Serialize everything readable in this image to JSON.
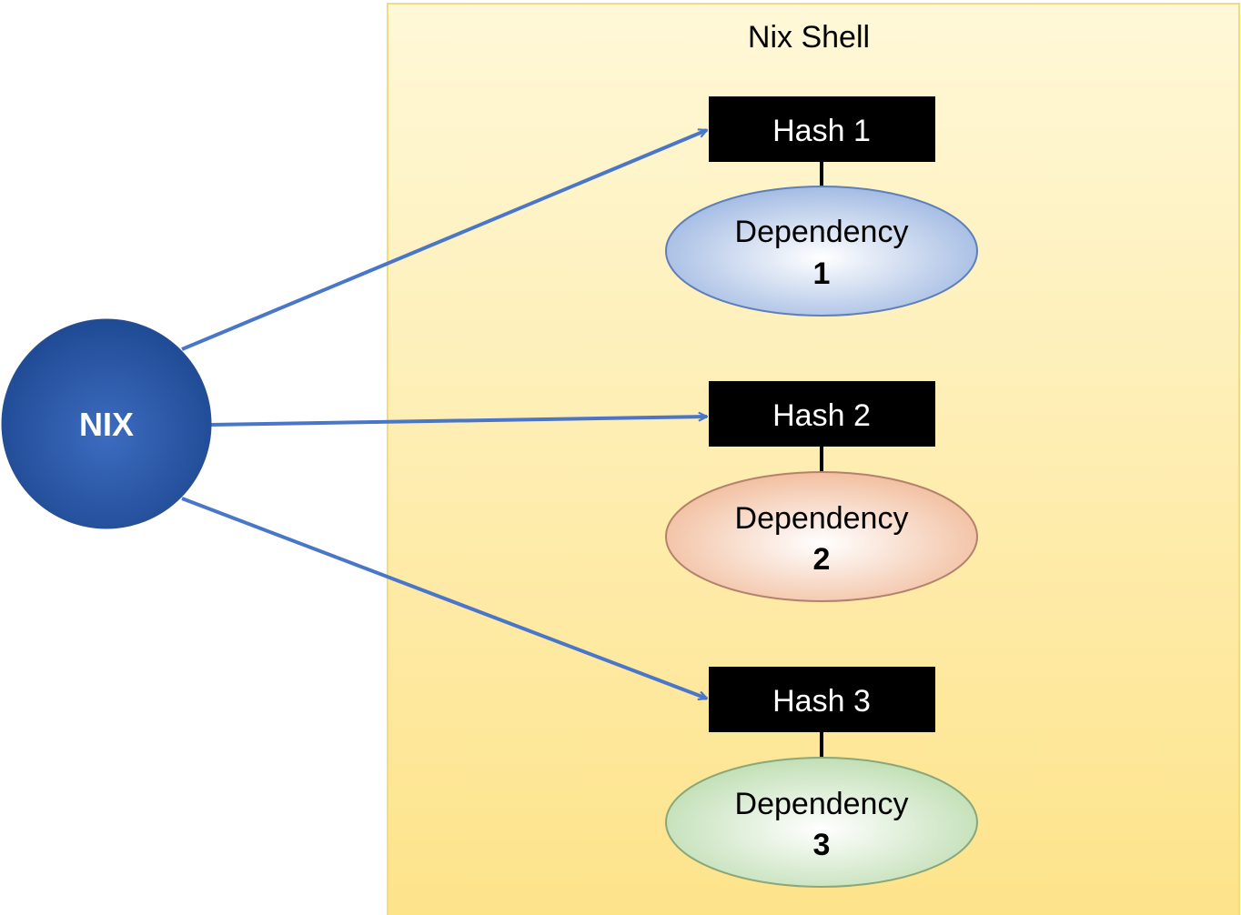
{
  "diagram": {
    "container": {
      "title": "Nix Shell"
    },
    "source": {
      "label": "NIX"
    },
    "hashes": [
      {
        "label": "Hash 1"
      },
      {
        "label": "Hash 2"
      },
      {
        "label": "Hash 3"
      }
    ],
    "dependencies": [
      {
        "label": "Dependency",
        "number": "1"
      },
      {
        "label": "Dependency",
        "number": "2"
      },
      {
        "label": "Dependency",
        "number": "3"
      }
    ]
  },
  "colors": {
    "container_top": "#fff8d8",
    "container_bottom": "#fde38a",
    "container_border": "#f3dc7a",
    "nix_fill_light": "#3d6cc0",
    "nix_fill_dark": "#1f4a94",
    "arrow": "#4a76c9",
    "hash_box": "#000000",
    "hash_text": "#ffffff",
    "dep1_edge": "#a3bbe3",
    "dep1_center": "#ffffff",
    "dep1_stroke": "#5d7fba",
    "dep2_edge": "#f2bfa0",
    "dep2_center": "#ffffff",
    "dep2_stroke": "#b4826c",
    "dep3_edge": "#c1dfb5",
    "dep3_center": "#ffffff",
    "dep3_stroke": "#8aa77b"
  }
}
